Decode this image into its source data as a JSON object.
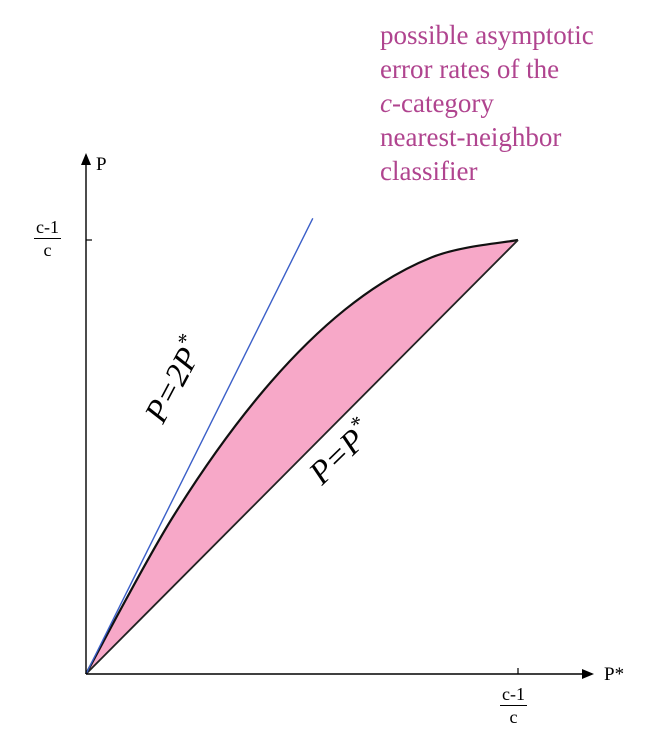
{
  "chart_data": {
    "type": "area",
    "xlabel": "P*",
    "ylabel": "P",
    "x_tick_max_num": "c-1",
    "x_tick_max_den": "c",
    "y_tick_max_num": "c-1",
    "y_tick_max_den": "c",
    "x_range": [
      0,
      1
    ],
    "y_range": [
      0,
      1
    ],
    "lines": [
      {
        "label_base": "P=2P",
        "label_sup": "*",
        "color": "#3b5fc8",
        "slope": 2
      },
      {
        "label_base": "P=P",
        "label_sup": "*",
        "color": "#222222",
        "slope": 1
      }
    ],
    "region": {
      "fill": "#f7a8c8",
      "upper_bound_points": [
        [
          0,
          0
        ],
        [
          0.2,
          0.36
        ],
        [
          0.4,
          0.64
        ],
        [
          0.6,
          0.84
        ],
        [
          0.8,
          0.96
        ],
        [
          1,
          1
        ]
      ]
    },
    "annotation": {
      "line1": "possible asymptotic",
      "line2": "error rates of the",
      "line3_italic": "c",
      "line3_rest": "-category",
      "line4": "nearest-neighbor",
      "line5": "classifier",
      "color": "#b0448f"
    }
  }
}
